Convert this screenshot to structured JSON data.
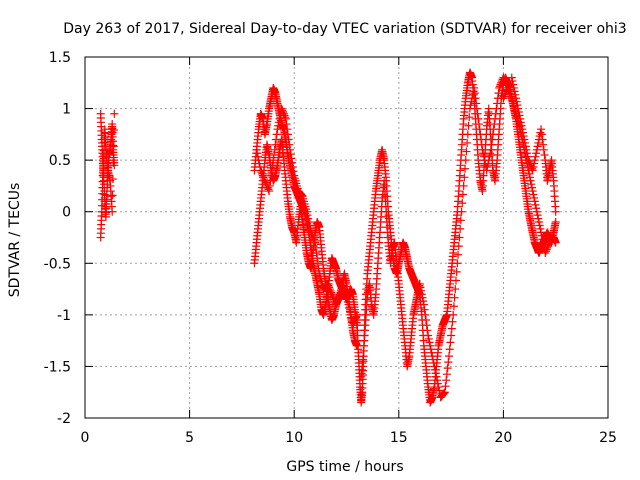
{
  "chart_data": {
    "type": "scatter",
    "title": "Day 263 of 2017, Sidereal Day-to-day VTEC variation (SDTVAR) for receiver ohi3",
    "xlabel": "GPS time / hours",
    "ylabel": "SDTVAR / TECUs",
    "xlim": [
      0,
      25
    ],
    "ylim": [
      -2,
      1.5
    ],
    "grid": true,
    "x_ticks": [
      0,
      5,
      10,
      15,
      20,
      25
    ],
    "y_ticks": [
      -2,
      -1.5,
      -1,
      -0.5,
      0,
      0.5,
      1,
      1.5
    ],
    "x_tick_labels": [
      "0",
      "5",
      "10",
      "15",
      "20",
      "25"
    ],
    "y_tick_labels": [
      "-2",
      "-1.5",
      "-1",
      "-0.5",
      "0",
      "0.5",
      "1",
      "1.5"
    ],
    "marker": "+",
    "color": "#ff0000",
    "series": [
      {
        "name": "seg1",
        "x": [
          0.75,
          0.8,
          0.85,
          0.9,
          0.95,
          1.0,
          1.05,
          1.1,
          1.15,
          1.2,
          1.25,
          1.3,
          1.35,
          1.4
        ],
        "y": [
          0.95,
          0.7,
          0.5,
          0.3,
          0.1,
          -0.05,
          0.2,
          0.4,
          0.55,
          0.6,
          0.7,
          0.85,
          0.6,
          0.45
        ]
      },
      {
        "name": "seg1b",
        "x": [
          0.75,
          0.8,
          0.85,
          0.9,
          0.95,
          1.0,
          1.1,
          1.2,
          1.3,
          1.4
        ],
        "y": [
          -0.25,
          0.0,
          0.35,
          0.55,
          0.8,
          0.6,
          0.4,
          0.3,
          0.0,
          0.95
        ]
      },
      {
        "name": "seg2",
        "x": [
          8.1,
          8.2,
          8.3,
          8.4,
          8.5,
          8.6,
          8.7,
          8.8,
          8.9,
          9.0,
          9.1,
          9.2,
          9.3,
          9.4,
          9.5,
          9.6,
          9.7,
          9.8,
          9.9,
          10.0,
          10.1,
          10.2,
          10.3,
          10.4,
          10.5,
          10.6,
          10.7,
          10.8,
          10.9,
          11.0,
          11.1,
          11.2,
          11.3,
          11.4,
          11.5,
          11.6,
          11.7,
          11.8,
          11.9,
          12.0,
          12.1,
          12.2,
          12.3,
          12.4,
          12.5,
          12.6,
          12.7,
          12.8,
          12.9,
          13.0
        ],
        "y": [
          0.4,
          0.6,
          0.8,
          0.95,
          0.9,
          0.75,
          0.85,
          1.0,
          1.1,
          1.2,
          1.15,
          1.05,
          0.95,
          0.85,
          0.8,
          0.7,
          0.55,
          0.45,
          0.35,
          0.25,
          0.2,
          0.15,
          0.1,
          0.05,
          0.0,
          -0.1,
          -0.2,
          -0.35,
          -0.5,
          -0.6,
          -0.7,
          -0.8,
          -0.95,
          -1.0,
          -0.9,
          -0.8,
          -0.6,
          -0.45,
          -0.5,
          -0.55,
          -0.65,
          -0.7,
          -0.75,
          -0.8,
          -0.85,
          -0.8,
          -0.75,
          -0.8,
          -0.95,
          -1.1
        ]
      },
      {
        "name": "seg2b",
        "x": [
          8.1,
          8.2,
          8.3,
          8.4,
          8.5,
          8.6,
          8.7,
          8.8,
          8.9,
          9.0,
          9.1,
          9.2,
          9.3,
          9.4,
          9.5,
          9.6,
          9.7,
          9.8,
          9.9,
          10.0,
          10.1,
          10.2,
          10.3,
          10.4,
          10.5,
          10.6,
          10.7,
          10.8,
          10.9,
          11.0,
          11.1,
          11.2,
          11.3,
          11.4,
          11.5,
          11.6,
          11.7,
          11.8,
          11.9,
          12.0,
          12.1,
          12.2,
          12.3,
          12.4,
          12.5,
          12.6,
          12.7,
          12.8,
          12.9,
          13.0
        ],
        "y": [
          -0.5,
          -0.3,
          -0.1,
          0.1,
          0.3,
          0.5,
          0.65,
          0.55,
          0.4,
          0.3,
          0.35,
          0.45,
          0.6,
          0.7,
          0.5,
          0.3,
          0.1,
          -0.05,
          -0.15,
          -0.2,
          -0.3,
          -0.1,
          0.05,
          -0.1,
          -0.25,
          -0.4,
          -0.5,
          -0.55,
          -0.4,
          -0.2,
          -0.1,
          -0.15,
          -0.35,
          -0.55,
          -0.7,
          -0.85,
          -0.95,
          -1.05,
          -1.0,
          -0.9,
          -0.85,
          -0.8,
          -0.7,
          -0.6,
          -0.7,
          -0.85,
          -1.0,
          -1.15,
          -1.25,
          -1.3
        ]
      },
      {
        "name": "seg2c",
        "x": [
          8.2,
          8.4,
          8.6,
          8.8,
          9.0,
          9.2,
          9.4,
          9.6,
          9.8,
          10.0,
          10.2,
          10.4,
          10.6,
          10.8,
          11.0,
          11.2,
          11.4,
          11.6,
          11.8,
          12.0,
          12.2,
          12.4,
          12.6,
          12.8,
          13.0
        ],
        "y": [
          0.6,
          0.4,
          0.3,
          0.2,
          0.5,
          0.8,
          1.0,
          0.9,
          0.6,
          0.35,
          0.2,
          0.15,
          0.0,
          -0.2,
          -0.3,
          -0.6,
          -0.75,
          -0.7,
          -0.8,
          -0.9,
          -0.8,
          -0.75,
          -0.9,
          -1.1,
          -1.0
        ]
      },
      {
        "name": "seg3",
        "x": [
          13.0,
          13.05,
          13.1,
          13.15,
          13.2,
          13.25,
          13.3,
          13.35,
          13.4,
          13.5,
          13.6,
          13.7,
          13.8,
          13.9,
          14.0,
          14.1,
          14.2,
          14.3,
          14.4,
          14.5,
          14.6,
          14.7,
          14.8,
          14.9,
          15.0,
          15.1,
          15.2,
          15.3,
          15.4,
          15.5,
          15.6,
          15.7,
          15.8,
          15.9,
          16.0
        ],
        "y": [
          -1.0,
          -1.3,
          -1.5,
          -1.7,
          -1.85,
          -1.75,
          -1.5,
          -1.2,
          -0.9,
          -0.6,
          -0.4,
          -0.2,
          0.0,
          0.2,
          0.35,
          0.5,
          0.6,
          0.5,
          0.3,
          0.0,
          -0.2,
          -0.4,
          -0.55,
          -0.6,
          -0.5,
          -0.4,
          -0.3,
          -0.35,
          -0.45,
          -0.55,
          -0.6,
          -0.65,
          -0.7,
          -0.75,
          -0.8
        ]
      },
      {
        "name": "seg3b",
        "x": [
          13.2,
          13.3,
          13.4,
          13.5,
          13.6,
          13.7,
          13.8,
          13.9,
          14.0,
          14.1,
          14.2,
          14.3,
          14.4,
          14.5,
          14.6,
          14.7,
          14.8,
          14.9,
          15.0,
          15.1,
          15.2,
          15.3,
          15.4,
          15.5,
          15.6,
          15.7,
          15.8,
          15.9,
          16.0
        ],
        "y": [
          -1.6,
          -1.4,
          -1.1,
          -0.8,
          -0.7,
          -0.9,
          -1.0,
          -0.8,
          -0.5,
          -0.2,
          0.1,
          0.3,
          0.0,
          -0.3,
          -0.5,
          -0.35,
          -0.3,
          -0.5,
          -0.7,
          -0.9,
          -1.1,
          -1.3,
          -1.5,
          -1.4,
          -1.2,
          -1.0,
          -0.9,
          -0.8,
          -0.7
        ]
      },
      {
        "name": "seg4",
        "x": [
          16.0,
          16.1,
          16.2,
          16.3,
          16.4,
          16.5,
          16.6,
          16.7,
          16.8,
          16.9,
          17.0,
          17.1,
          17.2,
          17.3,
          17.4,
          17.5,
          17.6,
          17.7,
          17.8,
          17.9,
          18.0,
          18.1,
          18.2,
          18.3,
          18.4,
          18.5,
          18.6,
          18.7,
          18.8,
          18.9,
          19.0,
          19.1,
          19.2,
          19.3,
          19.4,
          19.5,
          19.6,
          19.7,
          19.8,
          19.9,
          20.0
        ],
        "y": [
          -0.8,
          -1.0,
          -1.3,
          -1.5,
          -1.7,
          -1.85,
          -1.8,
          -1.7,
          -1.5,
          -1.3,
          -1.2,
          -1.1,
          -1.05,
          -1.0,
          -0.8,
          -0.6,
          -0.4,
          -0.2,
          0.0,
          0.3,
          0.6,
          0.9,
          1.1,
          1.25,
          1.35,
          1.3,
          1.1,
          0.8,
          0.5,
          0.3,
          0.2,
          0.5,
          0.8,
          1.0,
          0.7,
          0.4,
          0.3,
          0.5,
          0.8,
          1.1,
          1.25
        ]
      },
      {
        "name": "seg4b",
        "x": [
          16.0,
          16.2,
          16.4,
          16.6,
          16.8,
          17.0,
          17.2,
          17.4,
          17.6,
          17.8,
          18.0,
          18.2,
          18.4,
          18.6,
          18.8,
          19.0,
          19.2,
          19.4,
          19.6,
          19.8,
          20.0
        ],
        "y": [
          -0.7,
          -0.9,
          -1.2,
          -1.4,
          -1.6,
          -1.8,
          -1.75,
          -1.4,
          -1.0,
          -0.5,
          0.0,
          0.5,
          1.0,
          1.2,
          0.9,
          0.6,
          0.4,
          0.6,
          0.9,
          1.2,
          1.3
        ]
      },
      {
        "name": "seg5",
        "x": [
          20.0,
          20.1,
          20.2,
          20.3,
          20.4,
          20.5,
          20.6,
          20.7,
          20.8,
          20.9,
          21.0,
          21.1,
          21.2,
          21.3,
          21.4,
          21.5,
          21.6,
          21.7,
          21.8,
          21.9,
          22.0,
          22.1,
          22.2,
          22.3,
          22.4,
          22.5
        ],
        "y": [
          1.25,
          1.3,
          1.25,
          1.2,
          1.1,
          1.0,
          0.9,
          0.75,
          0.6,
          0.45,
          0.3,
          0.15,
          0.0,
          -0.1,
          -0.2,
          -0.3,
          -0.35,
          -0.4,
          -0.35,
          -0.3,
          -0.25,
          -0.2,
          -0.25,
          -0.3,
          -0.2,
          -0.1
        ]
      },
      {
        "name": "seg5b",
        "x": [
          20.0,
          20.2,
          20.4,
          20.6,
          20.8,
          21.0,
          21.2,
          21.4,
          21.6,
          21.8,
          22.0,
          22.2,
          22.4,
          22.5
        ],
        "y": [
          1.1,
          1.2,
          1.1,
          0.95,
          0.8,
          0.6,
          0.4,
          0.2,
          0.0,
          -0.2,
          -0.4,
          -0.3,
          -0.25,
          -0.3
        ]
      },
      {
        "name": "seg5c",
        "x": [
          20.4,
          20.6,
          20.8,
          21.0,
          21.2,
          21.4,
          21.6,
          21.8,
          22.0,
          22.1,
          22.2,
          22.3,
          22.4,
          22.5
        ],
        "y": [
          1.3,
          1.1,
          0.9,
          0.7,
          0.5,
          0.4,
          0.6,
          0.8,
          0.5,
          0.3,
          0.4,
          0.5,
          0.3,
          0.0
        ]
      }
    ]
  }
}
